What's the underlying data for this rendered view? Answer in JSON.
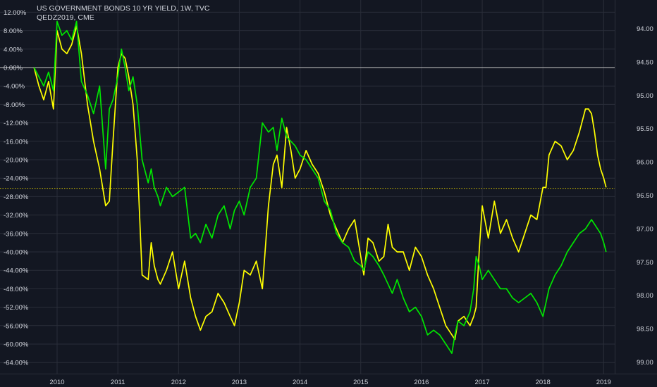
{
  "header": {
    "title": "US GOVERNMENT BONDS 10 YR YIELD, 1W, TVC",
    "subtitle": "QEDZ2019, CME"
  },
  "colors": {
    "background": "#131722",
    "grid": "#2a2e39",
    "text": "#d1d4dc",
    "yield_line": "#ffff00",
    "qed_line": "#00e600",
    "zero_line": "#c8c8c8",
    "current_level_line": "#d4c200"
  },
  "chart_data": {
    "type": "line",
    "title": "US GOVERNMENT BONDS 10 YR YIELD, 1W, TVC",
    "subtitle": "QEDZ2019, CME",
    "xlabel": "",
    "x_ticks": [
      "2010",
      "2011",
      "2012",
      "2013",
      "2014",
      "2015",
      "2016",
      "2017",
      "2018",
      "2019"
    ],
    "xlim": [
      2009.6,
      2019.4
    ],
    "left_axis": {
      "ticks": [
        "12.00%",
        "8.00%",
        "4.00%",
        "0.00%",
        "-4.00%",
        "-8.00%",
        "-12.00%",
        "-16.00%",
        "-20.00%",
        "-24.00%",
        "-28.00%",
        "-32.00%",
        "-36.00%",
        "-40.00%",
        "-44.00%",
        "-48.00%",
        "-52.00%",
        "-56.00%",
        "-60.00%",
        "-64.00%"
      ],
      "ylim": [
        -66.0,
        14.0
      ]
    },
    "right_axis": {
      "ticks": [
        "94.00",
        "94.50",
        "95.00",
        "95.50",
        "96.00",
        "96.50",
        "97.00",
        "97.50",
        "98.00",
        "98.50",
        "99.00"
      ],
      "ylim": [
        99.1,
        93.8
      ],
      "inverted": true
    },
    "zero_line": 0,
    "current_level": -26.2,
    "grid": true,
    "series": [
      {
        "axis": "left",
        "color": "#ffff00",
        "x": [
          2009.62,
          2009.7,
          2009.78,
          2009.86,
          2009.94,
          2010.0,
          2010.08,
          2010.16,
          2010.24,
          2010.32,
          2010.4,
          2010.5,
          2010.6,
          2010.7,
          2010.8,
          2010.86,
          2010.92,
          2011.0,
          2011.06,
          2011.12,
          2011.18,
          2011.25,
          2011.32,
          2011.4,
          2011.5,
          2011.55,
          2011.6,
          2011.66,
          2011.7,
          2011.8,
          2011.9,
          2012.0,
          2012.1,
          2012.2,
          2012.28,
          2012.36,
          2012.45,
          2012.55,
          2012.65,
          2012.75,
          2012.85,
          2012.92,
          2013.0,
          2013.08,
          2013.18,
          2013.28,
          2013.38,
          2013.48,
          2013.56,
          2013.62,
          2013.7,
          2013.78,
          2013.85,
          2013.92,
          2014.0,
          2014.1,
          2014.2,
          2014.3,
          2014.4,
          2014.5,
          2014.6,
          2014.7,
          2014.8,
          2014.9,
          2015.0,
          2015.05,
          2015.12,
          2015.2,
          2015.3,
          2015.38,
          2015.45,
          2015.52,
          2015.6,
          2015.7,
          2015.8,
          2015.9,
          2016.0,
          2016.1,
          2016.2,
          2016.3,
          2016.4,
          2016.5,
          2016.55,
          2016.6,
          2016.7,
          2016.8,
          2016.86,
          2016.9,
          2016.95,
          2017.0,
          2017.1,
          2017.2,
          2017.3,
          2017.4,
          2017.5,
          2017.6,
          2017.7,
          2017.8,
          2017.9,
          2018.0,
          2018.05,
          2018.1,
          2018.2,
          2018.3,
          2018.4,
          2018.5,
          2018.6,
          2018.7,
          2018.75,
          2018.8,
          2018.85,
          2018.9,
          2018.95,
          2019.0,
          2019.04
        ],
        "values": [
          0,
          -4,
          -7,
          -3,
          -9,
          8,
          4,
          3,
          5,
          9,
          3,
          -8,
          -16,
          -22,
          -30,
          -29,
          -16,
          0,
          3,
          2,
          -2,
          -8,
          -20,
          -45,
          -46,
          -38,
          -43,
          -46,
          -47,
          -44,
          -40,
          -48,
          -42,
          -50,
          -54,
          -57,
          -54,
          -53,
          -49,
          -51,
          -54,
          -56,
          -51,
          -44,
          -45,
          -42,
          -48,
          -30,
          -21,
          -19,
          -26,
          -13,
          -18,
          -24,
          -22,
          -18,
          -21,
          -23,
          -27,
          -32,
          -35,
          -38,
          -35,
          -33,
          -41,
          -45,
          -37,
          -38,
          -42,
          -41,
          -34,
          -39,
          -40,
          -40,
          -44,
          -39,
          -41,
          -45,
          -48,
          -52,
          -56,
          -58,
          -59,
          -55,
          -54,
          -56,
          -54,
          -52,
          -40,
          -30,
          -37,
          -29,
          -36,
          -33,
          -37,
          -40,
          -36,
          -32,
          -33,
          -26,
          -26,
          -19,
          -16,
          -17,
          -20,
          -18,
          -14,
          -9,
          -9,
          -10,
          -14,
          -19,
          -22,
          -24,
          -26
        ]
      },
      {
        "axis": "left",
        "color": "#00e600",
        "x": [
          2009.62,
          2009.7,
          2009.78,
          2009.86,
          2009.94,
          2010.0,
          2010.08,
          2010.16,
          2010.24,
          2010.32,
          2010.4,
          2010.5,
          2010.6,
          2010.7,
          2010.8,
          2010.86,
          2010.92,
          2011.0,
          2011.06,
          2011.12,
          2011.18,
          2011.25,
          2011.32,
          2011.4,
          2011.5,
          2011.55,
          2011.6,
          2011.66,
          2011.7,
          2011.8,
          2011.9,
          2012.0,
          2012.1,
          2012.2,
          2012.28,
          2012.36,
          2012.45,
          2012.55,
          2012.65,
          2012.75,
          2012.85,
          2012.92,
          2013.0,
          2013.08,
          2013.18,
          2013.28,
          2013.38,
          2013.48,
          2013.56,
          2013.62,
          2013.7,
          2013.78,
          2013.85,
          2013.92,
          2014.0,
          2014.1,
          2014.2,
          2014.3,
          2014.4,
          2014.5,
          2014.6,
          2014.7,
          2014.8,
          2014.9,
          2015.0,
          2015.05,
          2015.12,
          2015.2,
          2015.3,
          2015.38,
          2015.45,
          2015.52,
          2015.6,
          2015.7,
          2015.8,
          2015.9,
          2016.0,
          2016.1,
          2016.2,
          2016.3,
          2016.4,
          2016.5,
          2016.55,
          2016.6,
          2016.7,
          2016.8,
          2016.86,
          2016.9,
          2016.95,
          2017.0,
          2017.1,
          2017.2,
          2017.3,
          2017.4,
          2017.5,
          2017.6,
          2017.7,
          2017.8,
          2017.9,
          2018.0,
          2018.05,
          2018.1,
          2018.2,
          2018.3,
          2018.4,
          2018.5,
          2018.6,
          2018.7,
          2018.75,
          2018.8,
          2018.85,
          2018.9,
          2018.95,
          2019.0,
          2019.04
        ],
        "values": [
          0,
          -2,
          -4,
          -1,
          -5,
          10,
          7,
          8,
          6,
          10,
          -3,
          -6,
          -10,
          -4,
          -22,
          -9,
          -7,
          -2,
          4,
          0,
          -5,
          -2,
          -8,
          -20,
          -25,
          -22,
          -26,
          -28,
          -30,
          -26,
          -28,
          -27,
          -26,
          -37,
          -36,
          -38,
          -34,
          -37,
          -32,
          -30,
          -35,
          -31,
          -29,
          -32,
          -26,
          -24,
          -12,
          -14,
          -13,
          -18,
          -11,
          -15,
          -16,
          -17,
          -19,
          -20,
          -22,
          -24,
          -29,
          -31,
          -36,
          -38,
          -39,
          -42,
          -43,
          -44,
          -40,
          -41,
          -43,
          -45,
          -47,
          -49,
          -46,
          -50,
          -53,
          -52,
          -54,
          -58,
          -57,
          -58,
          -60,
          -62,
          -58,
          -55,
          -56,
          -53,
          -48,
          -41,
          -43,
          -46,
          -44,
          -46,
          -48,
          -48,
          -50,
          -51,
          -50,
          -49,
          -51,
          -54,
          -51,
          -48,
          -45,
          -43,
          -40,
          -38,
          -36,
          -35,
          -34,
          -33,
          -34,
          -35,
          -36,
          -38,
          -40
        ]
      }
    ]
  }
}
